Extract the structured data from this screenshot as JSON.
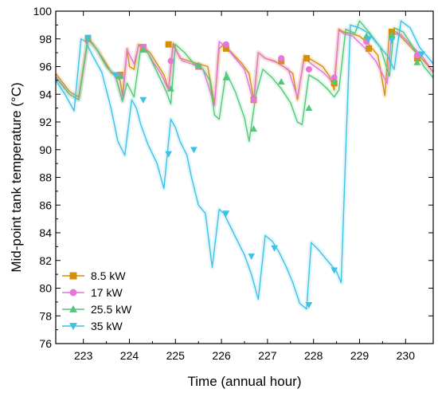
{
  "chart_data": {
    "type": "line",
    "xlabel": "Time (annual hour)",
    "ylabel": "Mid-point tank temperature (°C)",
    "xlim": [
      222.4,
      230.6
    ],
    "ylim": [
      76,
      100
    ],
    "xticks": [
      223,
      224,
      225,
      226,
      227,
      228,
      229,
      230
    ],
    "yticks": [
      76,
      78,
      80,
      82,
      84,
      86,
      88,
      90,
      92,
      94,
      96,
      98,
      100
    ],
    "grid": false,
    "legend_position": "bottom-left",
    "series": [
      {
        "name": "8.5 kW",
        "color": "#d4900a",
        "marker": "square",
        "x": [
          222.4,
          222.7,
          222.9,
          223.1,
          223.3,
          223.5,
          223.6,
          223.7,
          223.8,
          223.85,
          223.95,
          224.0,
          224.1,
          224.2,
          224.3,
          224.45,
          224.6,
          224.75,
          224.85,
          224.95,
          225.1,
          225.3,
          225.5,
          225.7,
          225.85,
          225.95,
          226.05,
          226.25,
          226.45,
          226.6,
          226.7,
          226.8,
          226.95,
          227.15,
          227.35,
          227.55,
          227.65,
          227.8,
          228.0,
          228.2,
          228.35,
          228.45,
          228.55,
          228.65,
          228.8,
          229.0,
          229.2,
          229.4,
          229.55,
          229.65,
          229.8,
          230.0,
          230.2,
          230.4,
          230.6
        ],
        "y": [
          95.5,
          94.2,
          93.8,
          98.1,
          97.2,
          96.2,
          95.6,
          95.3,
          95.0,
          93.9,
          97.3,
          96.0,
          95.8,
          97.6,
          97.4,
          97.0,
          96.2,
          95.4,
          94.4,
          97.7,
          96.6,
          96.4,
          96.2,
          96.0,
          93.3,
          97.3,
          97.6,
          96.9,
          96.2,
          95.5,
          93.6,
          97.0,
          96.6,
          96.4,
          96.0,
          95.5,
          93.6,
          96.8,
          96.4,
          96.0,
          95.3,
          94.3,
          98.7,
          98.5,
          98.4,
          98.2,
          97.6,
          96.8,
          93.9,
          98.6,
          98.5,
          97.8,
          97.1,
          96.4,
          95.6
        ],
        "marker_x": [
          223.1,
          223.8,
          224.3,
          224.85,
          225.5,
          226.1,
          226.7,
          227.3,
          227.85,
          228.45,
          229.2,
          229.7,
          230.25
        ],
        "marker_y": [
          98.0,
          95.4,
          97.4,
          97.6,
          96.0,
          97.3,
          93.6,
          96.4,
          96.6,
          94.8,
          97.3,
          98.5,
          96.6
        ]
      },
      {
        "name": "17 kW",
        "color": "#e477d8",
        "marker": "circle",
        "x": [
          222.4,
          222.7,
          222.9,
          223.1,
          223.3,
          223.5,
          223.7,
          223.85,
          223.95,
          224.1,
          224.2,
          224.35,
          224.5,
          224.7,
          224.85,
          224.95,
          225.15,
          225.35,
          225.6,
          225.85,
          225.95,
          226.1,
          226.3,
          226.5,
          226.7,
          226.8,
          226.95,
          227.2,
          227.45,
          227.65,
          227.8,
          227.95,
          228.2,
          228.45,
          228.55,
          228.65,
          228.85,
          229.1,
          229.35,
          229.6,
          229.7,
          229.9,
          230.1,
          230.35,
          230.6
        ],
        "y": [
          95.3,
          94.0,
          93.6,
          98.0,
          97.2,
          96.0,
          95.3,
          93.5,
          97.2,
          96.2,
          97.5,
          97.3,
          96.4,
          95.4,
          94.3,
          97.5,
          96.4,
          96.2,
          95.8,
          93.2,
          97.8,
          97.4,
          96.6,
          95.8,
          93.4,
          97.0,
          96.6,
          96.3,
          95.8,
          93.8,
          96.6,
          96.2,
          95.6,
          94.8,
          98.6,
          98.4,
          98.2,
          97.4,
          96.4,
          94.8,
          98.4,
          98.3,
          97.6,
          96.8,
          95.6
        ],
        "marker_x": [
          223.1,
          223.8,
          224.3,
          224.9,
          225.5,
          226.1,
          226.7,
          227.3,
          227.9,
          228.45,
          229.15,
          229.7,
          230.25
        ],
        "marker_y": [
          98.0,
          95.3,
          97.4,
          96.4,
          96.0,
          97.6,
          93.6,
          96.6,
          95.8,
          95.2,
          97.8,
          98.1,
          96.8
        ]
      },
      {
        "name": "25.5 kW",
        "color": "#52c77a",
        "marker": "triangle-up",
        "x": [
          222.4,
          222.7,
          222.9,
          223.1,
          223.3,
          223.5,
          223.7,
          223.85,
          223.95,
          224.1,
          224.25,
          224.4,
          224.6,
          224.8,
          224.9,
          225.0,
          225.2,
          225.4,
          225.6,
          225.75,
          225.85,
          225.95,
          226.1,
          226.3,
          226.5,
          226.6,
          226.75,
          226.9,
          227.1,
          227.3,
          227.5,
          227.65,
          227.75,
          227.9,
          228.1,
          228.3,
          228.45,
          228.55,
          228.7,
          228.9,
          229.0,
          229.2,
          229.45,
          229.65,
          229.75,
          229.95,
          230.2,
          230.4,
          230.6
        ],
        "y": [
          95.2,
          94.0,
          93.6,
          98.0,
          97.2,
          96.0,
          95.3,
          93.5,
          94.8,
          93.8,
          97.4,
          97.0,
          95.6,
          94.2,
          93.3,
          97.6,
          97.0,
          96.2,
          95.8,
          95.0,
          92.5,
          92.2,
          95.6,
          94.2,
          92.3,
          90.6,
          94.0,
          95.8,
          95.2,
          94.4,
          93.4,
          92.0,
          91.8,
          95.4,
          95.0,
          94.4,
          93.8,
          94.3,
          98.7,
          98.4,
          99.3,
          98.5,
          97.4,
          95.3,
          98.8,
          98.5,
          97.2,
          96.0,
          95.2
        ],
        "marker_x": [
          223.1,
          223.8,
          224.3,
          224.9,
          225.5,
          226.1,
          226.7,
          227.3,
          227.9,
          228.45,
          229.15,
          229.7,
          230.25
        ],
        "marker_y": [
          98.0,
          95.3,
          97.2,
          94.4,
          96.1,
          95.2,
          91.5,
          94.9,
          93.0,
          94.9,
          98.2,
          98.3,
          96.3
        ]
      },
      {
        "name": "35 kW",
        "color": "#3fc1e6",
        "marker": "triangle-down",
        "x": [
          222.4,
          222.6,
          222.8,
          222.95,
          223.05,
          223.2,
          223.4,
          223.6,
          223.75,
          223.9,
          224.05,
          224.15,
          224.25,
          224.4,
          224.6,
          224.75,
          224.9,
          225.0,
          225.1,
          225.25,
          225.35,
          225.5,
          225.65,
          225.8,
          225.95,
          226.05,
          226.2,
          226.35,
          226.5,
          226.65,
          226.8,
          226.95,
          227.1,
          227.25,
          227.4,
          227.55,
          227.7,
          227.85,
          227.95,
          228.1,
          228.3,
          228.5,
          228.6,
          228.7,
          228.8,
          229.0,
          229.2,
          229.4,
          229.6,
          229.75,
          229.9,
          230.1,
          230.3,
          230.6
        ],
        "y": [
          95.0,
          94.0,
          92.8,
          98.0,
          97.8,
          96.8,
          95.6,
          93.0,
          90.6,
          89.6,
          93.6,
          93.0,
          91.8,
          90.4,
          89.0,
          87.2,
          92.2,
          91.6,
          90.6,
          89.6,
          88.0,
          86.0,
          85.4,
          81.5,
          85.7,
          85.4,
          84.4,
          83.4,
          82.4,
          81.0,
          79.2,
          83.8,
          83.4,
          82.6,
          81.6,
          80.4,
          78.9,
          78.5,
          83.3,
          82.8,
          82.0,
          81.2,
          80.4,
          90.0,
          99.0,
          98.8,
          98.4,
          97.6,
          96.8,
          95.8,
          99.3,
          98.8,
          97.4,
          96.2
        ],
        "marker_x": [
          223.1,
          223.7,
          224.3,
          224.85,
          225.4,
          226.1,
          226.65,
          227.15,
          227.9,
          228.45,
          229.2,
          229.7,
          230.35
        ],
        "marker_y": [
          98.1,
          95.4,
          93.6,
          89.7,
          90.0,
          85.4,
          82.3,
          82.9,
          78.8,
          81.3,
          98.0,
          97.9,
          96.9
        ]
      }
    ]
  }
}
